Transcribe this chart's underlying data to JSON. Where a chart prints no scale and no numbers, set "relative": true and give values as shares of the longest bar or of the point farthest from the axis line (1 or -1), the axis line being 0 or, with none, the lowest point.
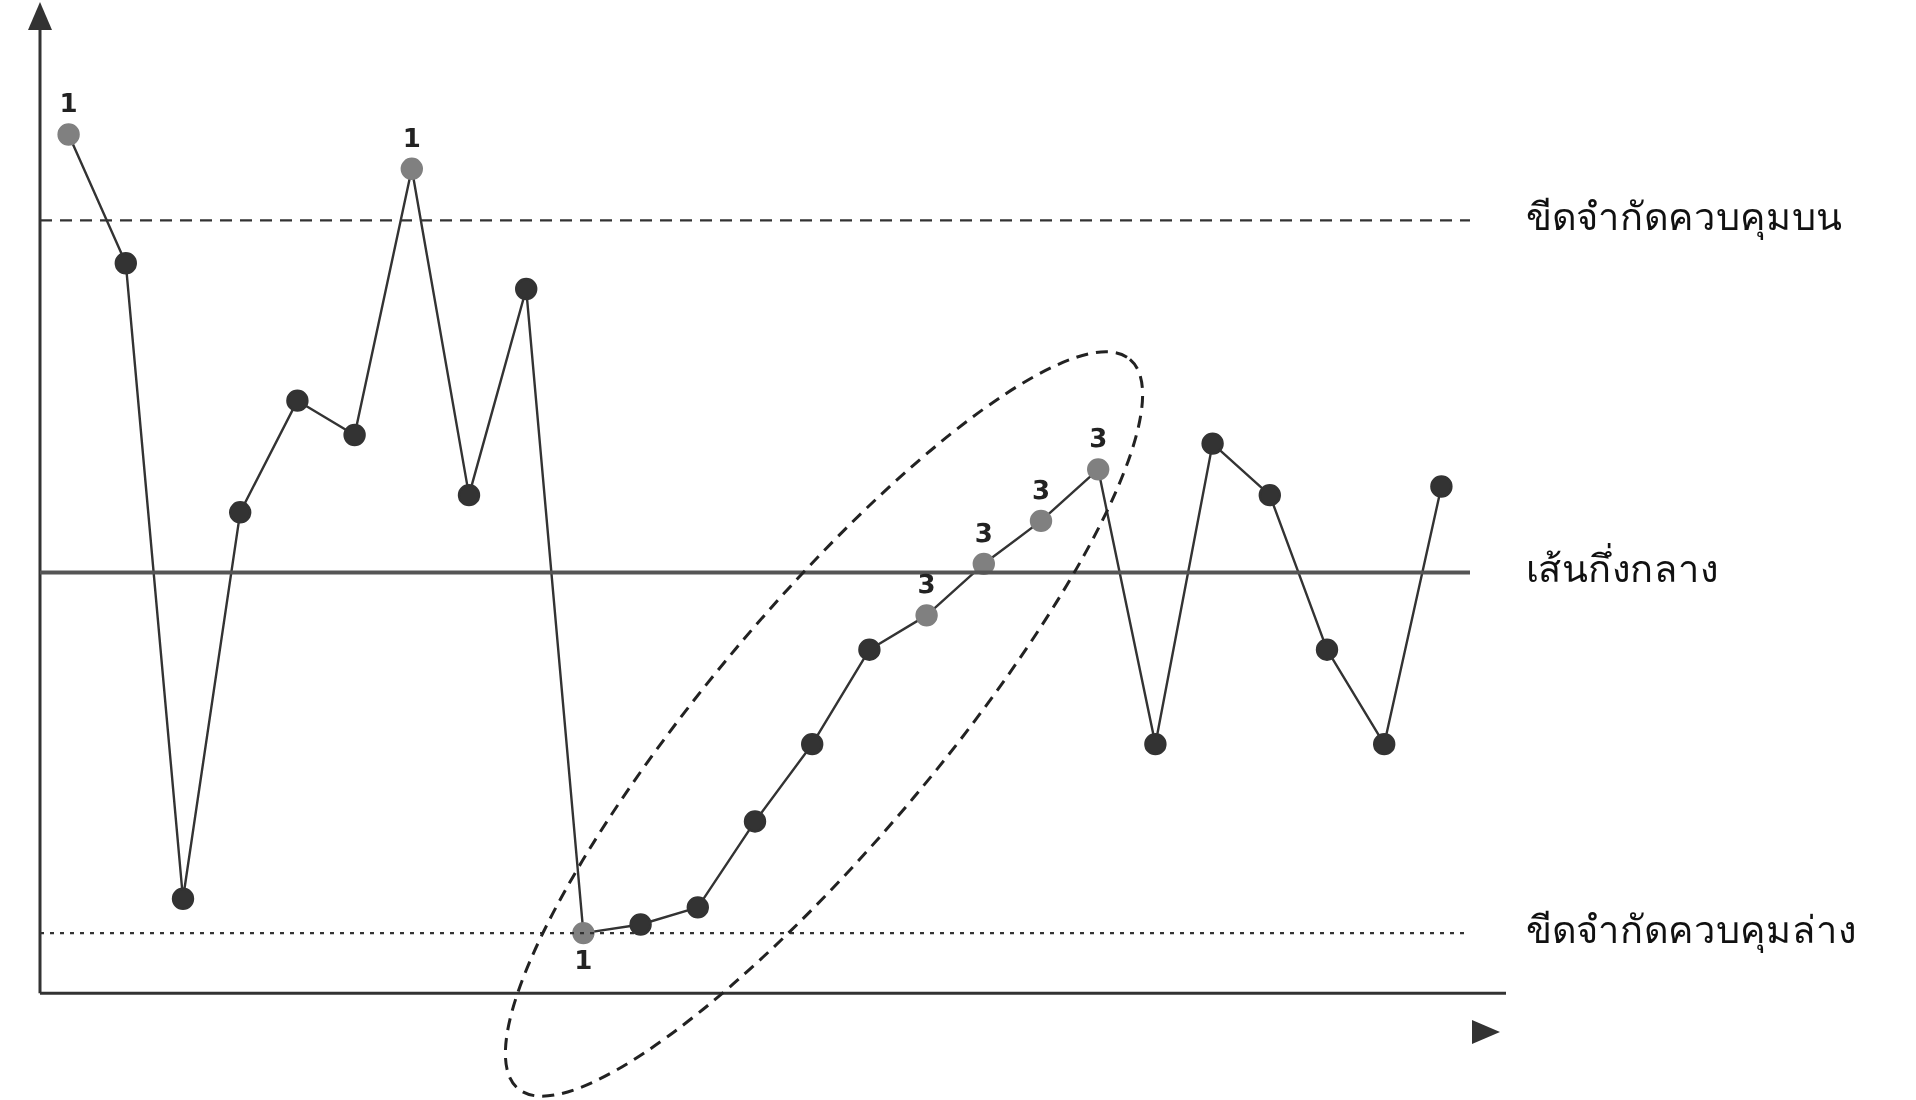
{
  "chart_data": {
    "type": "line",
    "relative": true,
    "categories": [
      null,
      null,
      null,
      null,
      null,
      null,
      null,
      null,
      null,
      null,
      null,
      null,
      null,
      null,
      null,
      null,
      null,
      null,
      null,
      null,
      null,
      null,
      null,
      null,
      null
    ],
    "series": [
      {
        "color": "#333333",
        "marker": "circle",
        "values": [
          1.0,
          0.85,
          0.11,
          0.56,
          0.69,
          0.65,
          0.96,
          0.58,
          0.82,
          0.07,
          0.08,
          0.1,
          0.2,
          0.29,
          0.4,
          0.44,
          0.5,
          0.55,
          0.61,
          0.29,
          0.64,
          0.58,
          0.4,
          0.29,
          0.59
        ],
        "colors": [
          "#808080",
          "#333333",
          "#333333",
          "#333333",
          "#333333",
          "#333333",
          "#808080",
          "#333333",
          "#333333",
          "#808080",
          "#333333",
          "#333333",
          "#333333",
          "#333333",
          "#333333",
          "#808080",
          "#808080",
          "#808080",
          "#808080",
          "#333333",
          "#333333",
          "#333333",
          "#333333",
          "#333333",
          "#333333"
        ]
      }
    ],
    "annotations": [
      "1",
      "1",
      "1",
      "3",
      "3",
      "3",
      "3"
    ],
    "ref_lines": [
      {
        "axis": "y",
        "value": 0.9,
        "label": "ขีดจำกัดควบคุมบน",
        "line_style": "dashed",
        "color": "#333333"
      },
      {
        "axis": "y",
        "value": 0.49,
        "label": "เส้นกึ่งกลาง",
        "line_style": "solid",
        "color": "#555555"
      },
      {
        "axis": "y",
        "value": 0.07,
        "label": "ขีดจำกัดควบคุมล่าง",
        "line_style": "dotted",
        "color": "#333333"
      }
    ],
    "line_style": "solid",
    "grid": false,
    "legend": false
  }
}
